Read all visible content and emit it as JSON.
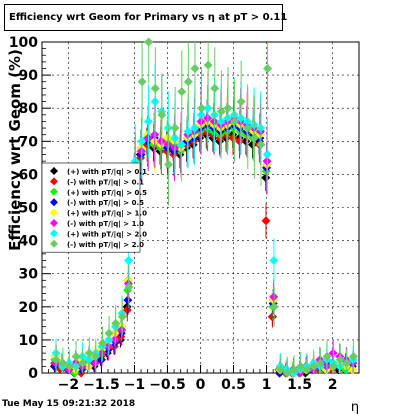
{
  "title": "Efficiency wrt Geom for Primary vs   η at pT > 0.11",
  "date_stamp": "Tue May 15 09:21:32 2018",
  "chart_data": {
    "type": "scatter",
    "title": "Efficiency wrt Geom for Primary vs   η at pT > 0.11",
    "xlabel": "η",
    "ylabel": "Efficiency wrt Geom (%)",
    "xlim": [
      -2.4,
      2.4
    ],
    "ylim": [
      0,
      100
    ],
    "x_ticks": [
      -2,
      -1.5,
      -1,
      -0.5,
      0,
      0.5,
      1,
      1.5,
      2
    ],
    "x_tick_labels": [
      "−2",
      "−1.5",
      "−1",
      "−0.5",
      "0",
      "0.5",
      "1",
      "1.5",
      "2"
    ],
    "y_ticks": [
      0,
      10,
      20,
      30,
      40,
      50,
      60,
      70,
      80,
      90,
      100
    ],
    "grid": true,
    "legend_position": "left",
    "x": [
      -2.2,
      -2.1,
      -2.0,
      -1.9,
      -1.8,
      -1.7,
      -1.6,
      -1.5,
      -1.4,
      -1.3,
      -1.2,
      -1.1,
      -1.0,
      -0.9,
      -0.8,
      -0.7,
      -0.6,
      -0.5,
      -0.4,
      -0.3,
      -0.2,
      -0.1,
      0.0,
      0.1,
      0.2,
      0.3,
      0.4,
      0.5,
      0.6,
      0.7,
      0.8,
      0.9,
      1.0,
      1.1,
      1.2,
      1.3,
      1.4,
      1.5,
      1.6,
      1.7,
      1.8,
      1.9,
      2.0,
      2.1,
      2.2,
      2.3
    ],
    "series": [
      {
        "name": "(+) with pT/|q| > 0.1",
        "color": "#000000",
        "values": [
          2,
          1,
          1,
          0,
          1,
          3,
          2,
          4,
          6,
          8,
          10,
          20,
          58,
          66,
          70,
          68,
          67,
          69,
          68,
          66,
          68,
          69,
          71,
          72,
          71,
          70,
          71,
          72,
          71,
          70,
          69,
          70,
          59,
          17,
          1,
          0,
          0,
          1,
          0,
          1,
          2,
          1,
          2,
          1,
          1,
          2
        ]
      },
      {
        "name": "(-) with pT/|q| > 0.1",
        "color": "#ff0000",
        "values": [
          3,
          1,
          2,
          1,
          0,
          2,
          3,
          5,
          7,
          8,
          11,
          19,
          57,
          65,
          69,
          70,
          68,
          67,
          66,
          67,
          69,
          70,
          72,
          73,
          72,
          71,
          72,
          71,
          70,
          72,
          71,
          69,
          46,
          17,
          0,
          1,
          0,
          0,
          1,
          2,
          1,
          2,
          1,
          2,
          2,
          3
        ]
      },
      {
        "name": "(+) with pT/|q| > 0.5",
        "color": "#00ff00",
        "values": [
          4,
          2,
          1,
          0,
          2,
          3,
          4,
          6,
          8,
          10,
          13,
          25,
          60,
          67,
          71,
          69,
          68,
          70,
          69,
          67,
          70,
          71,
          73,
          74,
          73,
          72,
          73,
          74,
          73,
          72,
          71,
          72,
          61,
          20,
          1,
          0,
          1,
          0,
          1,
          1,
          2,
          1,
          3,
          2,
          1,
          3
        ]
      },
      {
        "name": "(-) with pT/|q| > 0.5",
        "color": "#0000ff",
        "values": [
          2,
          3,
          1,
          2,
          1,
          2,
          3,
          4,
          7,
          9,
          12,
          22,
          59,
          66,
          70,
          71,
          69,
          68,
          67,
          68,
          70,
          71,
          74,
          75,
          74,
          73,
          74,
          75,
          74,
          73,
          72,
          71,
          62,
          21,
          0,
          1,
          0,
          1,
          2,
          1,
          2,
          3,
          2,
          2,
          3,
          2
        ]
      },
      {
        "name": "(+) with pT/|q| > 1.0",
        "color": "#ffff00",
        "values": [
          5,
          3,
          2,
          1,
          4,
          2,
          5,
          7,
          9,
          12,
          14,
          28,
          62,
          68,
          72,
          70,
          69,
          71,
          70,
          68,
          71,
          72,
          75,
          76,
          75,
          74,
          75,
          76,
          75,
          74,
          73,
          72,
          63,
          22,
          1,
          1,
          0,
          1,
          1,
          2,
          3,
          1,
          2,
          3,
          2,
          1
        ]
      },
      {
        "name": "(-) with pT/|q| > 1.0",
        "color": "#ff00ff",
        "values": [
          3,
          2,
          1,
          3,
          2,
          4,
          3,
          6,
          8,
          10,
          13,
          27,
          61,
          67,
          71,
          72,
          70,
          69,
          68,
          69,
          72,
          73,
          76,
          77,
          76,
          75,
          76,
          77,
          76,
          75,
          74,
          73,
          64,
          23,
          2,
          0,
          1,
          0,
          2,
          1,
          4,
          2,
          6,
          5,
          4,
          3
        ]
      },
      {
        "name": "(+) with pT/|q| > 2.0",
        "color": "#00ffff",
        "values": [
          6,
          2,
          3,
          2,
          5,
          4,
          6,
          8,
          10,
          14,
          18,
          34,
          64,
          70,
          76,
          82,
          79,
          74,
          71,
          69,
          73,
          74,
          78,
          80,
          78,
          76,
          77,
          78,
          77,
          76,
          75,
          74,
          66,
          34,
          2,
          1,
          0,
          1,
          2,
          3,
          2,
          4,
          3,
          2,
          3,
          4
        ]
      },
      {
        "name": "(-) with pT/|q| > 2.0",
        "color": "#66cc66",
        "values": [
          4,
          3,
          2,
          5,
          3,
          6,
          5,
          9,
          12,
          15,
          17,
          26,
          60,
          88,
          100,
          86,
          78,
          63,
          74,
          85,
          88,
          92,
          80,
          93,
          86,
          79,
          80,
          76,
          82,
          74,
          71,
          69,
          92,
          20,
          1,
          0,
          1,
          2,
          1,
          2,
          3,
          5,
          2,
          4,
          3,
          5
        ]
      }
    ]
  }
}
